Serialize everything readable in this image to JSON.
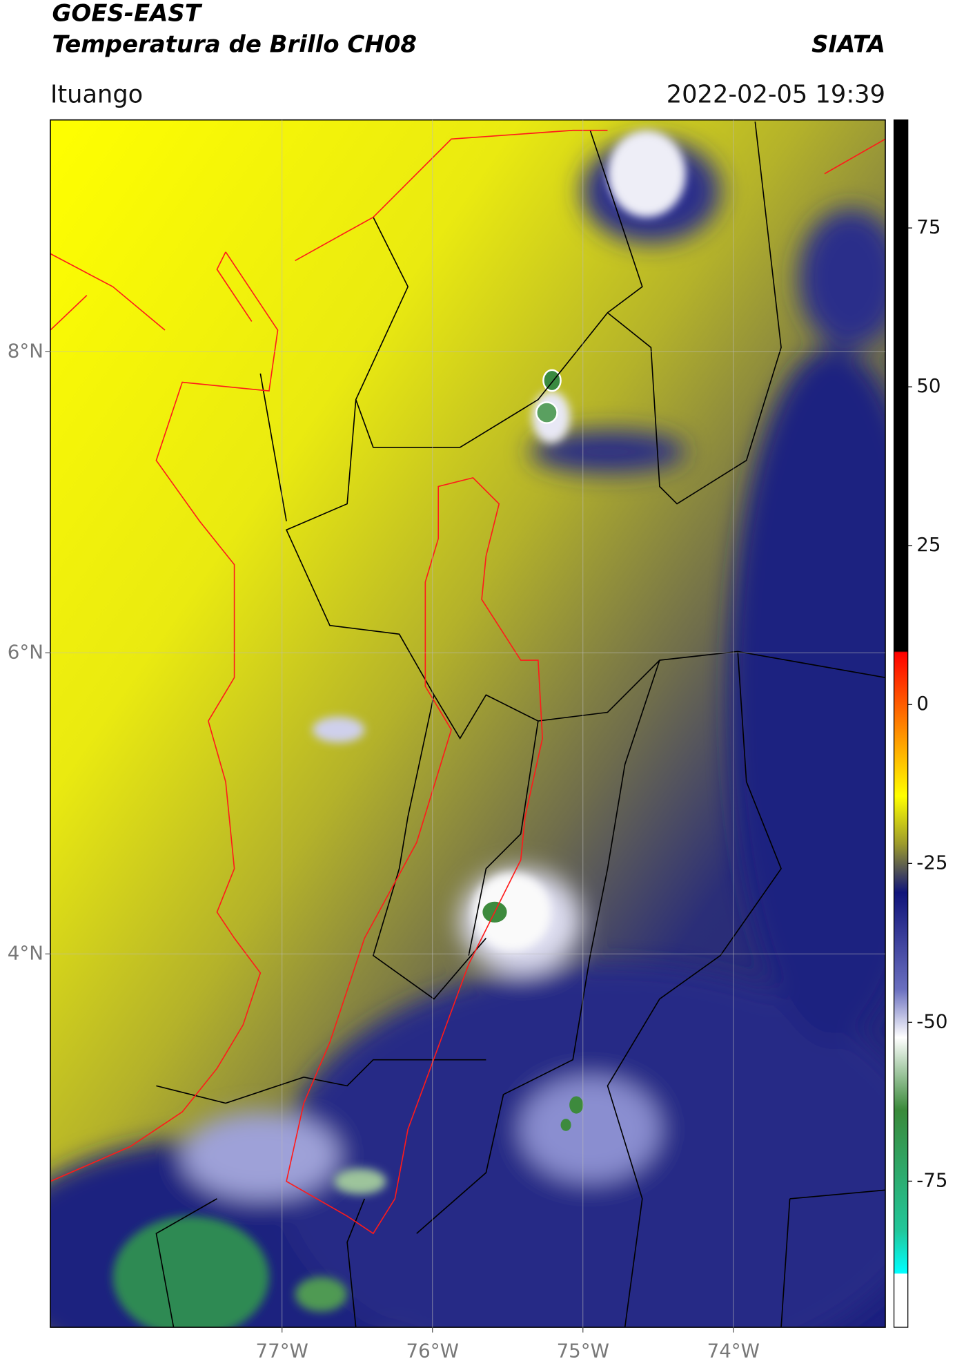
{
  "chart_data": {
    "type": "map",
    "title": "GOES-EAST",
    "subtitle": "Temperatura de Brillo CH08",
    "source": "SIATA",
    "region": "Ituango",
    "timestamp": "2022-02-05 19:39",
    "xlim": [
      -78.54,
      -72.99
    ],
    "ylim": [
      1.52,
      9.54
    ],
    "xticks": [
      {
        "value": -77,
        "label": "77°W"
      },
      {
        "value": -76,
        "label": "76°W"
      },
      {
        "value": -75,
        "label": "75°W"
      },
      {
        "value": -74,
        "label": "74°W"
      }
    ],
    "yticks": [
      {
        "value": 4,
        "label": "4°N"
      },
      {
        "value": 6,
        "label": "6°N"
      },
      {
        "value": 8,
        "label": "8°N"
      }
    ],
    "colorbar": {
      "lim": [
        -98,
        92
      ],
      "ticks": [
        -75,
        -50,
        -25,
        0,
        25,
        50,
        75
      ]
    },
    "grid": true
  }
}
